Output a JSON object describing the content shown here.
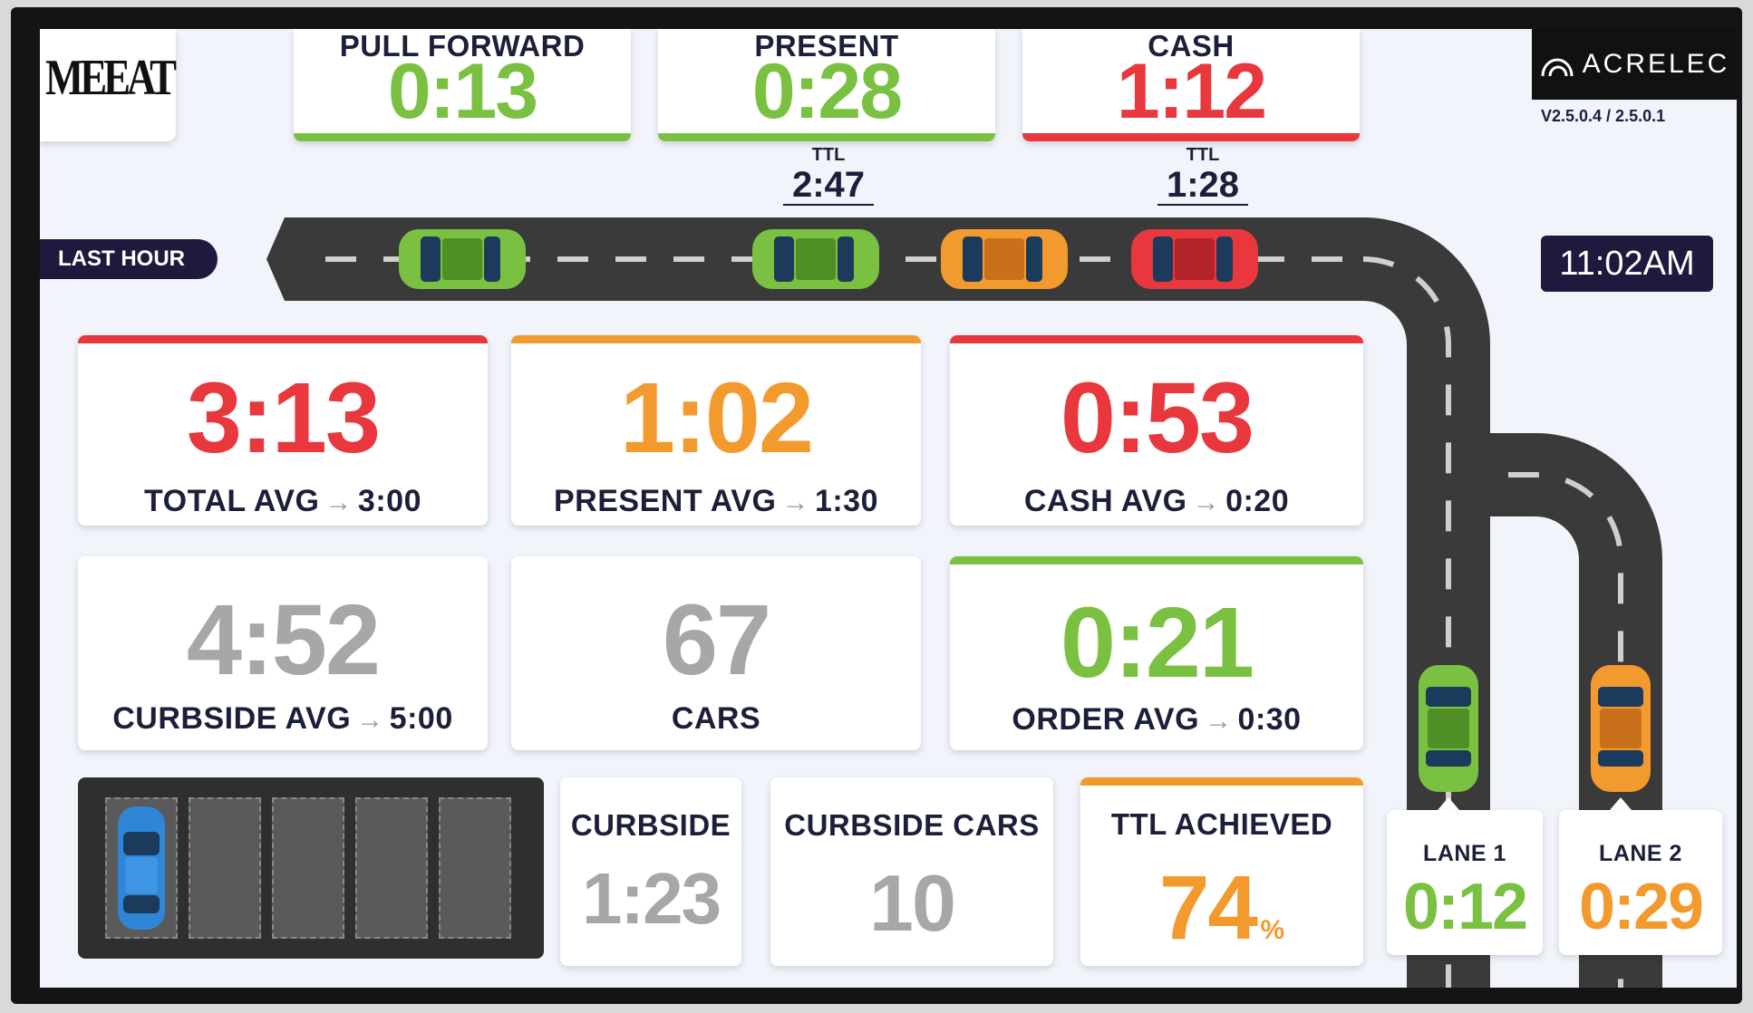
{
  "brand": {
    "logo_text": "MEEAT"
  },
  "vendor": {
    "name": "ACRELEC",
    "version": "V2.5.0.4 / 2.5.0.1"
  },
  "header": {
    "cards": [
      {
        "label": "PULL FORWARD",
        "value": "0:13",
        "status": "green"
      },
      {
        "label": "PRESENT",
        "value": "0:28",
        "status": "green"
      },
      {
        "label": "CASH",
        "value": "1:12",
        "status": "red"
      }
    ],
    "ttl": [
      {
        "label": "TTL",
        "value": "2:47"
      },
      {
        "label": "TTL",
        "value": "1:28"
      }
    ]
  },
  "last_hour_label": "LAST HOUR",
  "clock": "11:02AM",
  "stats": [
    {
      "value": "3:13",
      "label": "TOTAL AVG",
      "arrow": "→",
      "target": "3:00",
      "status": "red"
    },
    {
      "value": "1:02",
      "label": "PRESENT AVG",
      "arrow": "→",
      "target": "1:30",
      "status": "orange"
    },
    {
      "value": "0:53",
      "label": "CASH AVG",
      "arrow": "→",
      "target": "0:20",
      "status": "red"
    },
    {
      "value": "4:52",
      "label": "CURBSIDE AVG",
      "arrow": "→",
      "target": "5:00",
      "status": "gray"
    },
    {
      "value": "67",
      "label": "CARS",
      "status": "gray"
    },
    {
      "value": "0:21",
      "label": "ORDER AVG",
      "arrow": "→",
      "target": "0:30",
      "status": "green"
    }
  ],
  "bottom": {
    "curbside": {
      "label": "CURBSIDE",
      "value": "1:23"
    },
    "curbside_cars": {
      "label": "CURBSIDE CARS",
      "value": "10"
    },
    "ttl_achieved": {
      "label": "TTL ACHIEVED",
      "value": "74",
      "unit": "%",
      "percent": 74
    }
  },
  "lanes": [
    {
      "label": "LANE 1",
      "value": "0:12",
      "status": "green"
    },
    {
      "label": "LANE 2",
      "value": "0:29",
      "status": "orange"
    }
  ],
  "parking": {
    "stalls": 5,
    "occupied": 1
  },
  "colors": {
    "green": "#7ac142",
    "red": "#e8383d",
    "orange": "#f39a2e",
    "gray": "#a7a7a7",
    "navy": "#20193e",
    "road": "#3a3a3a"
  },
  "cars": {
    "queue": [
      "green",
      "green",
      "orange",
      "red"
    ],
    "lane_cars": [
      "green",
      "orange"
    ],
    "parked": [
      "blue"
    ]
  }
}
